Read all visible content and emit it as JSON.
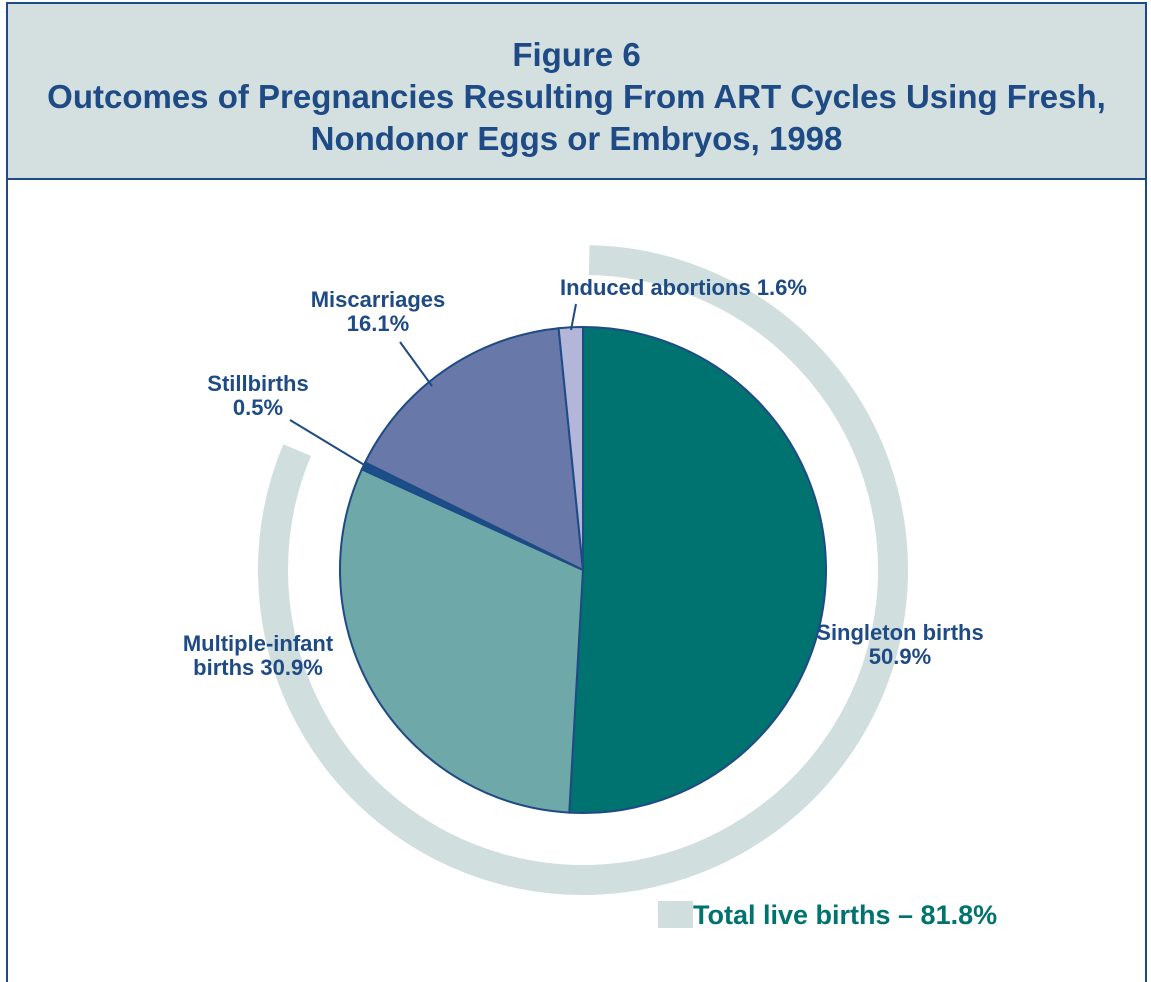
{
  "chart_data": {
    "type": "pie",
    "title": "Figure 6",
    "subtitle": "Outcomes of Pregnancies Resulting From ART Cycles Using Fresh, Nondonor Eggs or Embryos, 1998",
    "categories": [
      "Singleton births",
      "Multiple-infant births",
      "Stillbirths",
      "Miscarriages",
      "Induced abortions"
    ],
    "values": [
      50.9,
      30.9,
      0.5,
      16.1,
      1.6
    ],
    "value_labels": [
      "50.9%",
      "30.9%",
      "0.5%",
      "16.1%",
      "1.6%"
    ],
    "colors": [
      "#007370",
      "#6fa8a8",
      "#1a4f8a",
      "#6878a8",
      "#b3b6d9"
    ],
    "annotation": "Total live births – 81.8%",
    "annotation_color": "#d0dedd"
  }
}
